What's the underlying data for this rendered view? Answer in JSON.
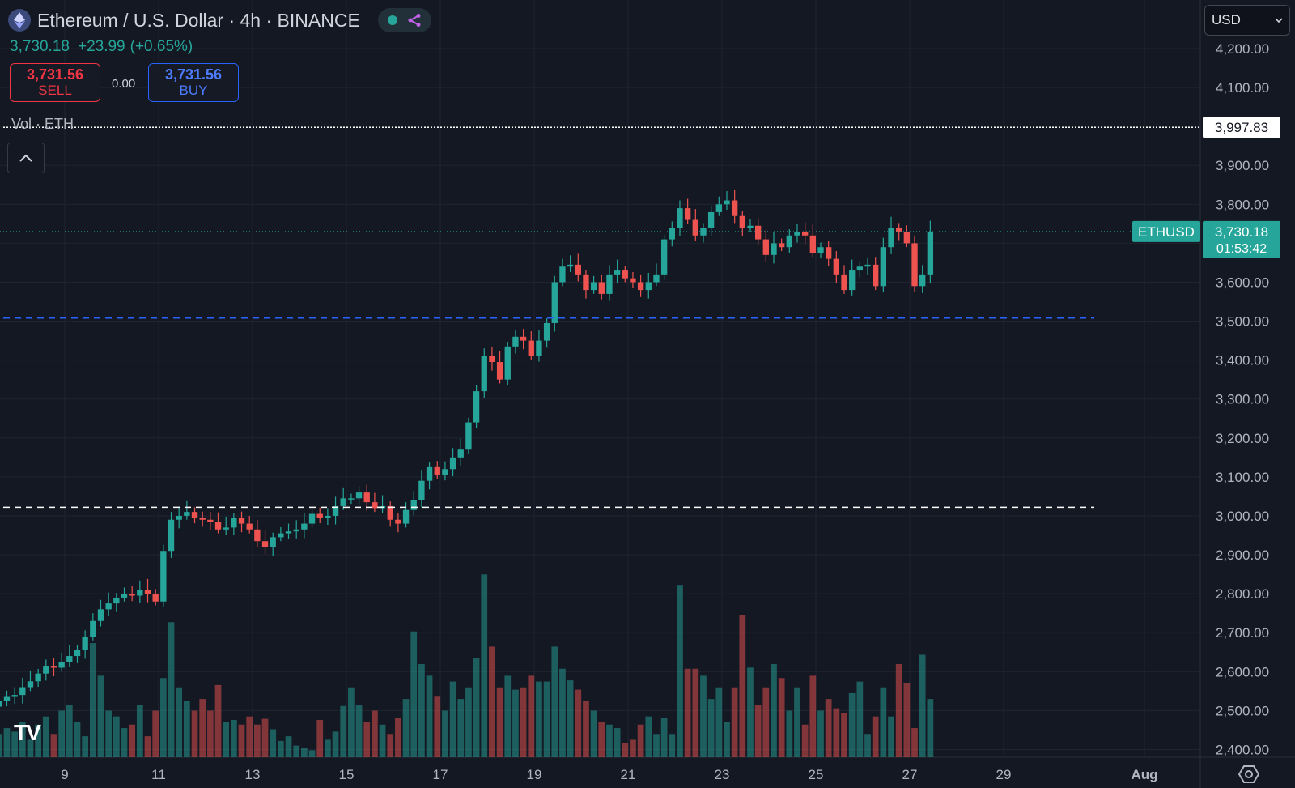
{
  "header": {
    "title": "Ethereum / U.S. Dollar · 4h · BINANCE",
    "last_price": "3,730.18",
    "change": "+23.99",
    "change_pct": "(+0.65%)"
  },
  "trading": {
    "sell_price": "3,731.56",
    "sell_label": "SELL",
    "spread": "0.00",
    "buy_price": "3,731.56",
    "buy_label": "BUY"
  },
  "volume_label": "Vol · ETH",
  "currency": "USD",
  "logo_text": "TV",
  "icons": [
    "ethereum-icon",
    "live-dot-icon",
    "share-icon",
    "chevron-up-icon",
    "chevron-down-icon",
    "settings-icon"
  ],
  "colors": {
    "up": "#26a69a",
    "down": "#ef5350",
    "background": "#141823",
    "buy": "#2962ff",
    "sell": "#f23645"
  },
  "chart_data": {
    "type": "candlestick",
    "symbol_label": "ETHUSD",
    "current_price": 3730.18,
    "countdown": "01:53:42",
    "y_range": [
      2380,
      4240
    ],
    "y_ticks": [
      4200,
      4100,
      4000,
      3900,
      3800,
      3700,
      3600,
      3500,
      3400,
      3300,
      3200,
      3100,
      3000,
      2900,
      2800,
      2700,
      2600,
      2500,
      2400
    ],
    "y_tick_labels": [
      "4,200.00",
      "4,100.00",
      "4,000.00",
      "3,900.00",
      "3,800.00",
      "3,700.00",
      "3,600.00",
      "3,500.00",
      "3,400.00",
      "3,300.00",
      "3,200.00",
      "3,100.00",
      "3,000.00",
      "2,900.00",
      "2,800.00",
      "2,700.00",
      "2,600.00",
      "2,500.00",
      "2,400.00"
    ],
    "x_ticks": [
      {
        "label": "9",
        "day": 9
      },
      {
        "label": "11",
        "day": 11
      },
      {
        "label": "13",
        "day": 13
      },
      {
        "label": "15",
        "day": 15
      },
      {
        "label": "17",
        "day": 17
      },
      {
        "label": "19",
        "day": 19
      },
      {
        "label": "21",
        "day": 21
      },
      {
        "label": "23",
        "day": 23
      },
      {
        "label": "25",
        "day": 25
      },
      {
        "label": "27",
        "day": 27
      },
      {
        "label": "29",
        "day": 29
      },
      {
        "label": "Aug",
        "day": 32
      }
    ],
    "horizontal_lines": [
      {
        "price": 3997.83,
        "label": "3,997.83",
        "style": "dotted",
        "color": "#ffffff"
      },
      {
        "price": 3508,
        "style": "dashed",
        "color": "#2962ff"
      },
      {
        "price": 3022,
        "style": "dashed",
        "color": "#ffffff"
      }
    ],
    "first_day": 7.6,
    "bar_days": 0.1667,
    "close": [
      2525,
      2535,
      2540,
      2560,
      2575,
      2595,
      2615,
      2610,
      2625,
      2640,
      2655,
      2690,
      2730,
      2760,
      2775,
      2790,
      2800,
      2795,
      2810,
      2800,
      2780,
      2910,
      2990,
      3000,
      3010,
      2995,
      2990,
      2985,
      2965,
      2970,
      2995,
      2980,
      2965,
      2935,
      2920,
      2945,
      2955,
      2960,
      2965,
      2980,
      3005,
      2995,
      3000,
      3025,
      3045,
      3045,
      3060,
      3035,
      3020,
      3025,
      2990,
      2980,
      3015,
      3040,
      3090,
      3125,
      3105,
      3120,
      3150,
      3170,
      3240,
      3320,
      3410,
      3395,
      3350,
      3435,
      3460,
      3450,
      3410,
      3450,
      3495,
      3600,
      3640,
      3645,
      3620,
      3580,
      3600,
      3570,
      3620,
      3630,
      3610,
      3600,
      3580,
      3600,
      3620,
      3710,
      3740,
      3790,
      3760,
      3720,
      3740,
      3780,
      3800,
      3810,
      3770,
      3740,
      3745,
      3710,
      3670,
      3700,
      3690,
      3720,
      3730,
      3720,
      3675,
      3690,
      3660,
      3620,
      3580,
      3630,
      3640,
      3645,
      3590,
      3690,
      3740,
      3730,
      3700,
      3590,
      3620,
      3730
    ],
    "volume": [
      20,
      25,
      22,
      30,
      15,
      28,
      35,
      20,
      40,
      45,
      30,
      18,
      98,
      70,
      40,
      35,
      25,
      28,
      45,
      18,
      40,
      68,
      116,
      60,
      48,
      40,
      50,
      40,
      62,
      30,
      32,
      28,
      35,
      28,
      33,
      24,
      14,
      18,
      10,
      8,
      6,
      32,
      15,
      22,
      44,
      60,
      45,
      30,
      40,
      28,
      20,
      34,
      50,
      108,
      80,
      70,
      52,
      40,
      65,
      50,
      60,
      85,
      157,
      95,
      60,
      70,
      58,
      60,
      70,
      65,
      65,
      95,
      76,
      66,
      58,
      48,
      40,
      30,
      28,
      25,
      12,
      15,
      28,
      35,
      20,
      34,
      20,
      148,
      76,
      76,
      70,
      50,
      60,
      30,
      60,
      122,
      77,
      45,
      60,
      80,
      68,
      40,
      60,
      28,
      70,
      40,
      50,
      42,
      38,
      55,
      65,
      20,
      35,
      60,
      35,
      80,
      64,
      25,
      88,
      50
    ],
    "volume_scale_max": 160
  }
}
